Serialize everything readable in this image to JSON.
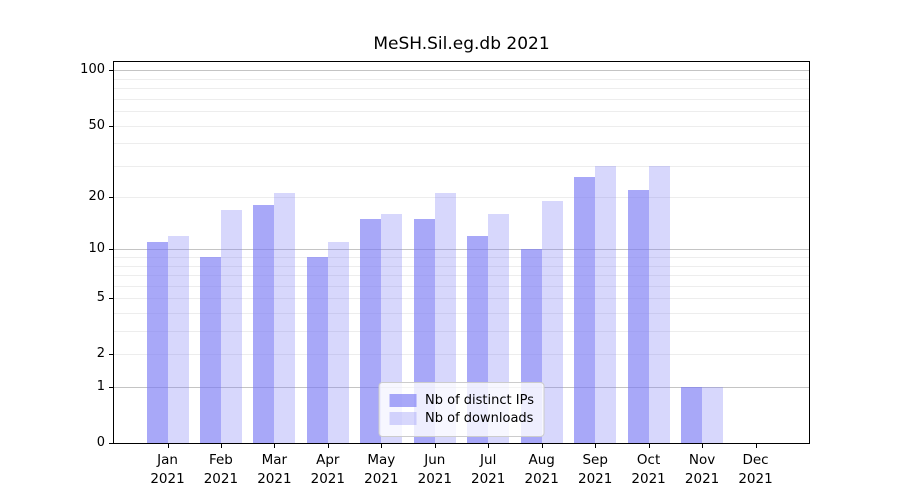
{
  "chart_data": {
    "type": "bar",
    "title": "MeSH.Sil.eg.db 2021",
    "categories": [
      "Jan 2021",
      "Feb 2021",
      "Mar 2021",
      "Apr 2021",
      "May 2021",
      "Jun 2021",
      "Jul 2021",
      "Aug 2021",
      "Sep 2021",
      "Oct 2021",
      "Nov 2021",
      "Dec 2021"
    ],
    "series": [
      {
        "name": "Nb of distinct IPs",
        "color": "rgba(122,122,245,0.65)",
        "values": [
          11,
          9,
          18,
          9,
          15,
          15,
          12,
          10,
          26,
          22,
          1,
          0
        ]
      },
      {
        "name": "Nb of downloads",
        "color": "rgba(122,122,245,0.30)",
        "values": [
          12,
          17,
          21,
          11,
          16,
          21,
          16,
          19,
          30,
          30,
          1,
          0
        ]
      }
    ],
    "xlabel": "",
    "ylabel": "",
    "yscale": "log10(1+y)",
    "ylim": [
      0,
      111
    ],
    "yticks": [
      0,
      1,
      2,
      5,
      10,
      20,
      50,
      100
    ],
    "grid": {
      "major": [
        1,
        10,
        100
      ],
      "minor": [
        2,
        3,
        4,
        5,
        6,
        7,
        8,
        9,
        20,
        30,
        40,
        50,
        60,
        70,
        80,
        90
      ]
    },
    "legend_position": "lower center",
    "colors": {
      "frame": "#000000",
      "major_grid": "#c4c4c4",
      "minor_grid": "#ededed",
      "text": "#000000",
      "background": "#ffffff"
    }
  }
}
